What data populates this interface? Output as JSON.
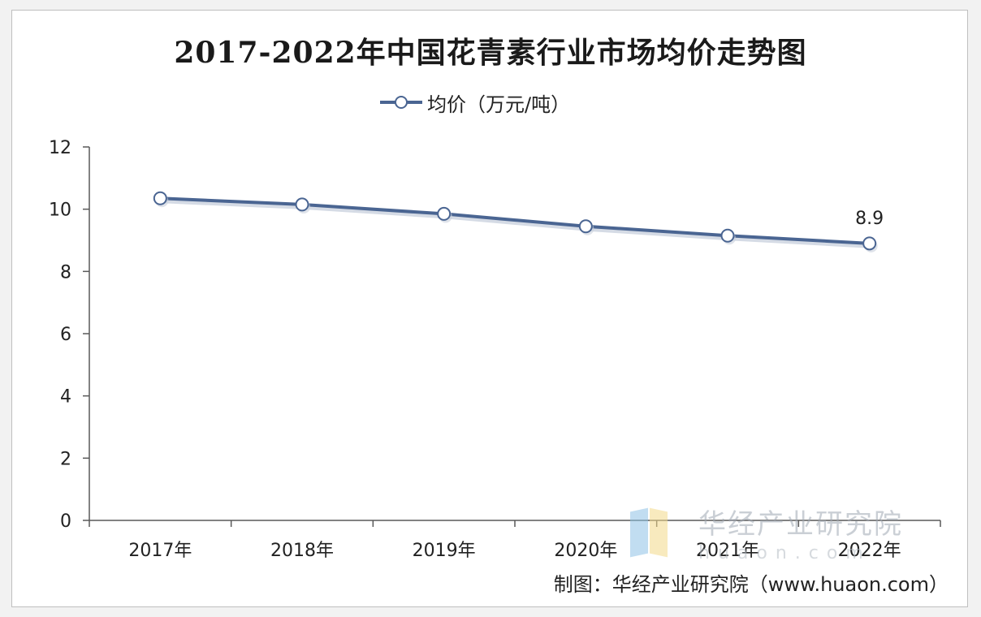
{
  "source_text": "制图：华经产业研究院（www.huaon.com）",
  "watermark": {
    "cn": "华经产业研究院",
    "en": "huaon.com"
  },
  "colors": {
    "line": "#4a6592",
    "axis": "#595959",
    "text": "#222222"
  },
  "chart_data": {
    "type": "line",
    "title": "2017-2022年中国花青素行业市场均价走势图",
    "xlabel": "",
    "ylabel": "",
    "categories": [
      "2017年",
      "2018年",
      "2019年",
      "2020年",
      "2021年",
      "2022年"
    ],
    "series": [
      {
        "name": "均价（万元/吨）",
        "values": [
          10.35,
          10.15,
          9.85,
          9.45,
          9.15,
          8.9
        ]
      }
    ],
    "data_labels": [
      {
        "index": 5,
        "text": "8.9"
      }
    ],
    "ylim": [
      0,
      12
    ],
    "yticks": [
      0,
      2,
      4,
      6,
      8,
      10,
      12
    ],
    "grid": false,
    "legend": "top-center"
  }
}
